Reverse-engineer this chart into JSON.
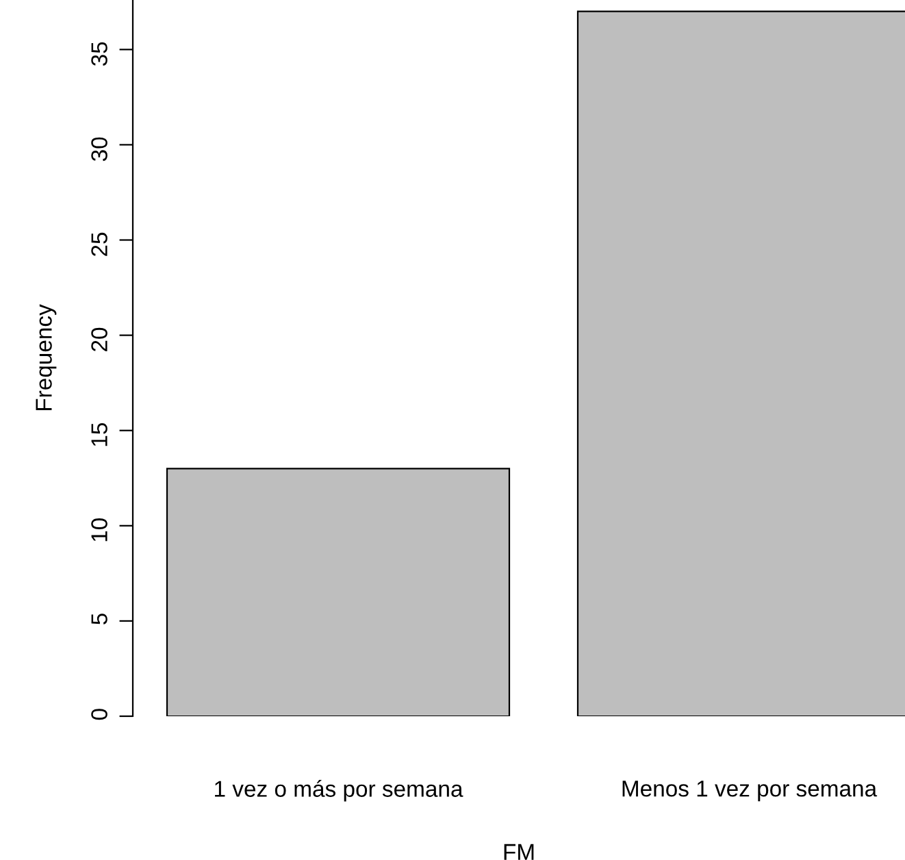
{
  "chart_data": {
    "type": "bar",
    "xlabel": "FM",
    "ylabel": "Frequency",
    "categories": [
      "1 vez o más por semana",
      "Menos 1 vez por semana"
    ],
    "values": [
      13,
      37
    ],
    "color": "#bebebe",
    "ylim": [
      0,
      37.6
    ],
    "yticks": [
      0,
      5,
      10,
      15,
      20,
      25,
      30,
      35
    ],
    "grid": false,
    "legend": false
  }
}
